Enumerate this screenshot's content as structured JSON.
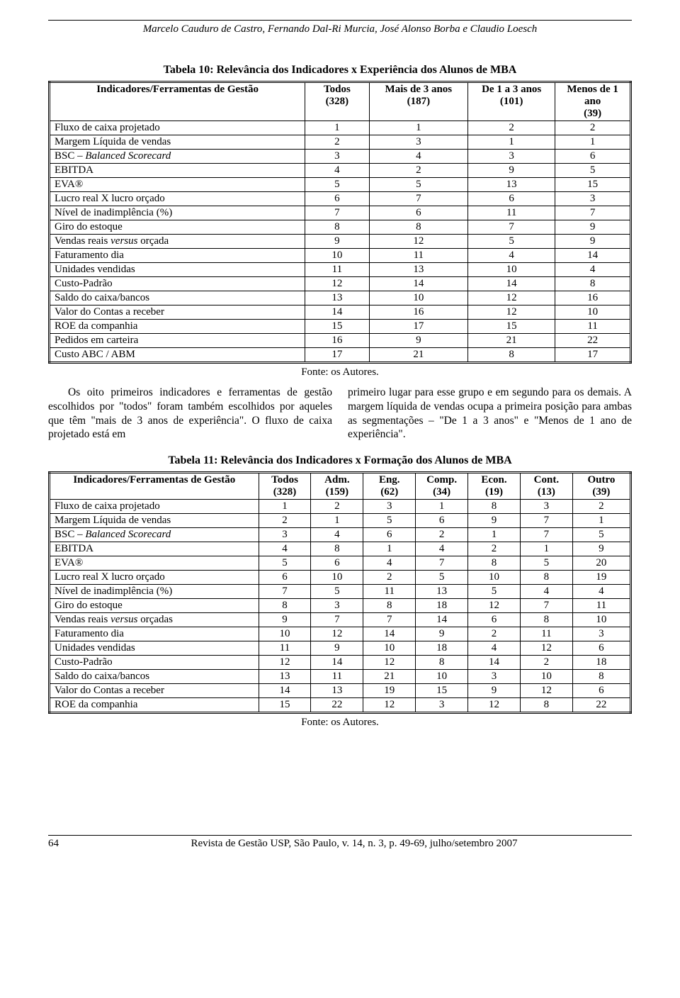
{
  "header": {
    "authors": "Marcelo Cauduro de Castro, Fernando Dal-Ri Murcia, José Alonso Borba e Claudio Loesch"
  },
  "table10": {
    "title": "Tabela 10: Relevância dos Indicadores x Experiência dos Alunos de MBA",
    "headers": [
      {
        "line1": "Indicadores/Ferramentas de Gestão",
        "line2": ""
      },
      {
        "line1": "Todos",
        "line2": "(328)"
      },
      {
        "line1": "Mais de 3 anos",
        "line2": "(187)"
      },
      {
        "line1": "De 1 a 3 anos",
        "line2": "(101)"
      },
      {
        "line1": "Menos de 1 ano",
        "line2": "(39)"
      }
    ],
    "rows": [
      {
        "label": "Fluxo de caixa projetado",
        "c": [
          "1",
          "1",
          "2",
          "2"
        ]
      },
      {
        "label": "Margem Líquida de vendas",
        "c": [
          "2",
          "3",
          "1",
          "1"
        ]
      },
      {
        "label": "BSC – <span class=\"ital\">Balanced Scorecard</span>",
        "c": [
          "3",
          "4",
          "3",
          "6"
        ]
      },
      {
        "label": "EBITDA",
        "c": [
          "4",
          "2",
          "9",
          "5"
        ]
      },
      {
        "label": "EVA®",
        "c": [
          "5",
          "5",
          "13",
          "15"
        ]
      },
      {
        "label": "Lucro real X lucro orçado",
        "c": [
          "6",
          "7",
          "6",
          "3"
        ]
      },
      {
        "label": "Nível de inadimplência (%)",
        "c": [
          "7",
          "6",
          "11",
          "7"
        ]
      },
      {
        "label": "Giro do estoque",
        "c": [
          "8",
          "8",
          "7",
          "9"
        ]
      },
      {
        "label": "Vendas reais <span class=\"ital\">versus</span> orçada",
        "c": [
          "9",
          "12",
          "5",
          "9"
        ]
      },
      {
        "label": "Faturamento dia",
        "c": [
          "10",
          "11",
          "4",
          "14"
        ]
      },
      {
        "label": "Unidades vendidas",
        "c": [
          "11",
          "13",
          "10",
          "4"
        ]
      },
      {
        "label": "Custo-Padrão",
        "c": [
          "12",
          "14",
          "14",
          "8"
        ]
      },
      {
        "label": "Saldo do caixa/bancos",
        "c": [
          "13",
          "10",
          "12",
          "16"
        ]
      },
      {
        "label": "Valor do Contas a receber",
        "c": [
          "14",
          "16",
          "12",
          "10"
        ]
      },
      {
        "label": "ROE da companhia",
        "c": [
          "15",
          "17",
          "15",
          "11"
        ]
      },
      {
        "label": "Pedidos em carteira",
        "c": [
          "16",
          "9",
          "21",
          "22"
        ]
      },
      {
        "label": "Custo ABC / ABM",
        "c": [
          "17",
          "21",
          "8",
          "17"
        ]
      }
    ],
    "source": "Fonte: os Autores.",
    "col_widths": [
      "44%",
      "11%",
      "17%",
      "15%",
      "15%"
    ]
  },
  "paragraph": {
    "left": "Os oito primeiros indicadores e ferramentas de gestão escolhidos por \"todos\" foram também escolhidos por aqueles que têm \"mais de 3 anos de experiência\". O fluxo de caixa projetado está em",
    "right": "primeiro lugar para esse grupo e em segundo para os demais. A margem líquida de vendas ocupa a primeira posição para ambas as segmentações – \"De 1 a 3 anos\" e \"Menos de 1 ano de experiência\"."
  },
  "table11": {
    "title": "Tabela 11: Relevância dos Indicadores x Formação dos Alunos de MBA",
    "headers": [
      {
        "line1": "Indicadores/Ferramentas de Gestão",
        "line2": ""
      },
      {
        "line1": "Todos",
        "line2": "(328)"
      },
      {
        "line1": "Adm.",
        "line2": "(159)"
      },
      {
        "line1": "Eng.",
        "line2": "(62)"
      },
      {
        "line1": "Comp.",
        "line2": "(34)"
      },
      {
        "line1": "Econ.",
        "line2": "(19)"
      },
      {
        "line1": "Cont.",
        "line2": "(13)"
      },
      {
        "line1": "Outro",
        "line2": "(39)"
      }
    ],
    "rows": [
      {
        "label": "Fluxo de caixa projetado",
        "c": [
          "1",
          "2",
          "3",
          "1",
          "8",
          "3",
          "2"
        ]
      },
      {
        "label": "Margem Líquida de vendas",
        "c": [
          "2",
          "1",
          "5",
          "6",
          "9",
          "7",
          "1"
        ]
      },
      {
        "label": "BSC – <span class=\"ital\">Balanced Scorecard</span>",
        "c": [
          "3",
          "4",
          "6",
          "2",
          "1",
          "7",
          "5"
        ]
      },
      {
        "label": "EBITDA",
        "c": [
          "4",
          "8",
          "1",
          "4",
          "2",
          "1",
          "9"
        ]
      },
      {
        "label": "EVA®",
        "c": [
          "5",
          "6",
          "4",
          "7",
          "8",
          "5",
          "20"
        ]
      },
      {
        "label": "Lucro real X lucro orçado",
        "c": [
          "6",
          "10",
          "2",
          "5",
          "10",
          "8",
          "19"
        ]
      },
      {
        "label": "Nível de inadimplência (%)",
        "c": [
          "7",
          "5",
          "11",
          "13",
          "5",
          "4",
          "4"
        ]
      },
      {
        "label": "Giro do estoque",
        "c": [
          "8",
          "3",
          "8",
          "18",
          "12",
          "7",
          "11"
        ]
      },
      {
        "label": "Vendas reais <span class=\"ital\">versus</span> orçadas",
        "c": [
          "9",
          "7",
          "7",
          "14",
          "6",
          "8",
          "10"
        ]
      },
      {
        "label": "Faturamento dia",
        "c": [
          "10",
          "12",
          "14",
          "9",
          "2",
          "11",
          "3"
        ]
      },
      {
        "label": "Unidades vendidas",
        "c": [
          "11",
          "9",
          "10",
          "18",
          "4",
          "12",
          "6"
        ]
      },
      {
        "label": "Custo-Padrão",
        "c": [
          "12",
          "14",
          "12",
          "8",
          "14",
          "2",
          "18"
        ]
      },
      {
        "label": "Saldo do caixa/bancos",
        "c": [
          "13",
          "11",
          "21",
          "10",
          "3",
          "10",
          "8"
        ]
      },
      {
        "label": "Valor do Contas a receber",
        "c": [
          "14",
          "13",
          "19",
          "15",
          "9",
          "12",
          "6"
        ]
      },
      {
        "label": "ROE da companhia",
        "c": [
          "15",
          "22",
          "12",
          "3",
          "12",
          "8",
          "22"
        ]
      }
    ],
    "source": "Fonte: os Autores.",
    "col_widths": [
      "36%",
      "9%",
      "9%",
      "9%",
      "9%",
      "9%",
      "9%",
      "10%"
    ]
  },
  "footer": {
    "page": "64",
    "journal": "Revista de Gestão USP, São Paulo, v. 14, n. 3, p. 49-69, julho/setembro 2007"
  }
}
